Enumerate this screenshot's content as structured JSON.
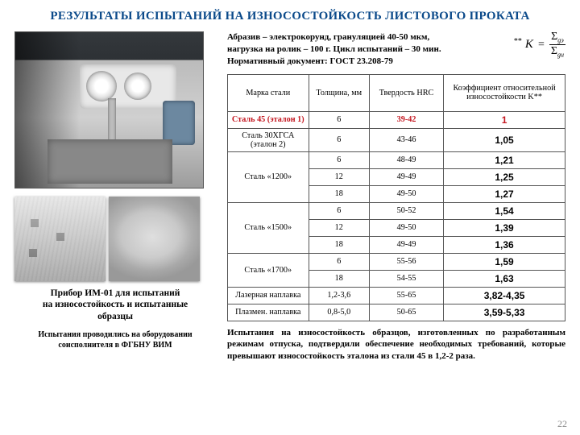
{
  "title": "РЕЗУЛЬТАТЫ ИСПЫТАНИЙ НА ИЗНОСОСТОЙКОСТЬ ЛИСТОВОГО ПРОКАТА",
  "conditions_l1": "Абразив – электрокорунд, грануляцией 40-50 мкм,",
  "conditions_l2": "нагрузка на ролик – 100 г. Цикл испытаний – 30 мин.",
  "conditions_l3": "Нормативный документ: ГОСТ 23.208-79",
  "formula": {
    "pre": "**",
    "var": "K",
    "num_sym": "Σ",
    "num_sub": "gэ",
    "den_sym": "Σ",
    "den_sub": "gи"
  },
  "left_caption1_l1": "Прибор ИМ-01 для испытаний",
  "left_caption1_l2": "на износостойкость и испытанные",
  "left_caption1_l3": "образцы",
  "left_caption2_l1": "Испытания проводились на оборудовании",
  "left_caption2_l2": "соисполнителя в ФГБНУ ВИМ",
  "table": {
    "headers": {
      "steel": "Марка стали",
      "thickness": "Толщина, мм",
      "hardness": "Твердость HRC",
      "k": "Коэффициент относительной износостойкости K**"
    },
    "rows": [
      {
        "name": "Сталь 45 (эталон 1)",
        "nameClass": "red",
        "span": 1,
        "cells": [
          [
            "6",
            "39-42",
            "1",
            "red"
          ]
        ]
      },
      {
        "name": "Сталь 30ХГСА (эталон 2)",
        "span": 1,
        "cells": [
          [
            "6",
            "43-46",
            "1,05",
            ""
          ]
        ]
      },
      {
        "name": "Сталь «1200»",
        "span": 3,
        "cells": [
          [
            "6",
            "48-49",
            "1,21",
            ""
          ],
          [
            "12",
            "49-49",
            "1,25",
            ""
          ],
          [
            "18",
            "49-50",
            "1,27",
            ""
          ]
        ]
      },
      {
        "name": "Сталь «1500»",
        "span": 3,
        "cells": [
          [
            "6",
            "50-52",
            "1,54",
            ""
          ],
          [
            "12",
            "49-50",
            "1,39",
            ""
          ],
          [
            "18",
            "49-49",
            "1,36",
            ""
          ]
        ]
      },
      {
        "name": "Сталь «1700»",
        "span": 2,
        "cells": [
          [
            "6",
            "55-56",
            "1,59",
            ""
          ],
          [
            "18",
            "54-55",
            "1,63",
            ""
          ]
        ]
      },
      {
        "name": "Лазерная наплавка",
        "span": 1,
        "cells": [
          [
            "1,2-3,6",
            "55-65",
            "3,82-4,35",
            ""
          ]
        ]
      },
      {
        "name": "Плазмен. наплавка",
        "span": 1,
        "cells": [
          [
            "0,8-5,0",
            "50-65",
            "3,59-5,33",
            ""
          ]
        ]
      }
    ]
  },
  "conclusion": "Испытания на износостойкость образцов, изготовленных по разработанным режимам отпуска, подтвердили обеспечение необходимых требований, которые превышают износостойкость эталона из стали 45 в 1,2-2 раза.",
  "page": "22"
}
